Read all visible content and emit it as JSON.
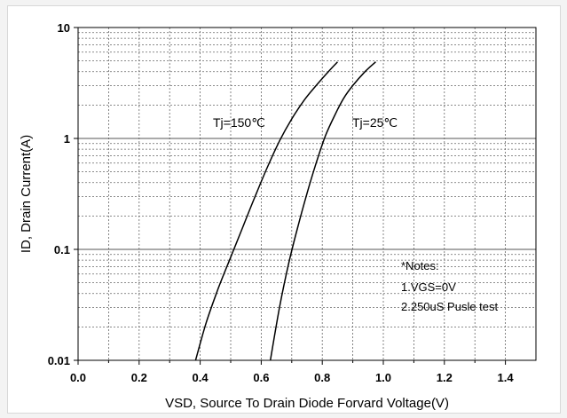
{
  "chart_data": {
    "type": "line",
    "xlabel": "VSD, Source To Drain Diode Forvard Voltage(V)",
    "ylabel": "ID,  Drain Current(A)",
    "xlim": [
      0.0,
      1.5
    ],
    "ylim": [
      0.01,
      10
    ],
    "yscale": "log",
    "xticks": [
      "0.0",
      "0.2",
      "0.4",
      "0.6",
      "0.8",
      "1.0",
      "1.2",
      "1.4"
    ],
    "yticks": [
      "0.01",
      "0.1",
      "1",
      "10"
    ],
    "grid": true,
    "series": [
      {
        "name": "Tj=150℃",
        "x": [
          0.385,
          0.42,
          0.46,
          0.5,
          0.54,
          0.58,
          0.62,
          0.66,
          0.7,
          0.74,
          0.78,
          0.82,
          0.85
        ],
        "y": [
          0.01,
          0.022,
          0.045,
          0.085,
          0.16,
          0.3,
          0.55,
          0.95,
          1.5,
          2.2,
          3.0,
          4.0,
          4.9
        ]
      },
      {
        "name": "Tj=25℃",
        "x": [
          0.63,
          0.66,
          0.69,
          0.72,
          0.75,
          0.78,
          0.81,
          0.84,
          0.87,
          0.9,
          0.94,
          0.975
        ],
        "y": [
          0.01,
          0.03,
          0.075,
          0.16,
          0.32,
          0.6,
          1.05,
          1.6,
          2.3,
          3.0,
          4.0,
          4.9
        ]
      }
    ],
    "annotations": [
      {
        "text": "Tj=150℃",
        "series": 0
      },
      {
        "text": "Tj=25℃",
        "series": 1
      }
    ],
    "notes": [
      "*Notes:",
      "1.VGS=0V",
      "2.250uS Pusle test"
    ],
    "colors": {
      "line": "#000000",
      "grid": "#666666",
      "background": "#ffffff"
    }
  }
}
